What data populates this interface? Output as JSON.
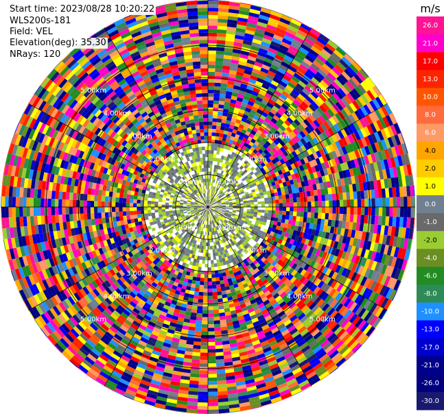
{
  "header": {
    "start_time": "Start time: 2023/08/28 10:20:22",
    "instrument": "WLS200s-181",
    "field": "Field: VEL",
    "elevation": "Elevation(deg): 35.30",
    "nrays": "NRays: 120"
  },
  "chart_data": {
    "type": "polar-ppi",
    "field": "VEL",
    "nrays": 120,
    "elevation_deg": 35.3,
    "range_rings": [
      {
        "range_km": 1.0,
        "label": "1.00km"
      },
      {
        "range_km": 2.0,
        "label": "2.00km"
      },
      {
        "range_km": 3.0,
        "label": "3.00km"
      },
      {
        "range_km": 4.0,
        "label": "4.00km"
      },
      {
        "range_km": 5.0,
        "label": "5.00km"
      }
    ],
    "max_range_km": 6.4,
    "colorbar": {
      "unit": "m/s",
      "vmin": -30,
      "vmax": 30,
      "ticks": [
        "26.0",
        "21.0",
        "17.0",
        "13.0",
        "10.0",
        "8.0",
        "6.0",
        "4.0",
        "2.0",
        "1.0",
        "0.0",
        "-1.0",
        "-2.0",
        "-4.0",
        "-6.0",
        "-8.0",
        "-10.0",
        "-13.0",
        "-17.0",
        "-21.0",
        "-26.0",
        "-30.0"
      ],
      "colors": [
        "#ff1493",
        "#ff00cc",
        "#ff0000",
        "#ff2400",
        "#ff5500",
        "#ff6b3d",
        "#ff9966",
        "#ffa500",
        "#ffcc00",
        "#ffff00",
        "#708090",
        "#696969",
        "#9acd32",
        "#6b8e23",
        "#228b22",
        "#2e8b57",
        "#1e90ff",
        "#0000ff",
        "#0000cd",
        "#00008b",
        "#000080",
        "#191970"
      ]
    },
    "grid": true
  }
}
